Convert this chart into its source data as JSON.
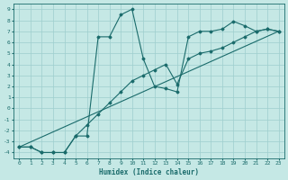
{
  "xlabel": "Humidex (Indice chaleur)",
  "bg_color": "#c5e8e5",
  "grid_color": "#9ecece",
  "line_color": "#1a6b6b",
  "xlim": [
    -0.5,
    23.5
  ],
  "ylim": [
    -4.5,
    9.5
  ],
  "xticks": [
    0,
    1,
    2,
    3,
    4,
    5,
    6,
    7,
    8,
    9,
    10,
    11,
    12,
    13,
    14,
    15,
    16,
    17,
    18,
    19,
    20,
    21,
    22,
    23
  ],
  "yticks": [
    -4,
    -3,
    -2,
    -1,
    0,
    1,
    2,
    3,
    4,
    5,
    6,
    7,
    8,
    9
  ],
  "series1_x": [
    0,
    1,
    2,
    3,
    4,
    5,
    6,
    7,
    8,
    9,
    10,
    11,
    12,
    13,
    14,
    15,
    16,
    17,
    18,
    19,
    20,
    21,
    22,
    23
  ],
  "series1_y": [
    -3.5,
    -3.5,
    -4.0,
    -4.0,
    -4.0,
    -2.5,
    -2.5,
    6.5,
    6.5,
    8.5,
    9.0,
    4.5,
    2.0,
    1.8,
    1.5,
    6.5,
    7.0,
    7.0,
    7.2,
    7.9,
    7.5,
    7.0,
    7.2,
    7.0
  ],
  "series2_x": [
    0,
    1,
    2,
    3,
    4,
    5,
    6,
    7,
    8,
    9,
    10,
    11,
    12,
    13,
    14,
    15,
    16,
    17,
    18,
    19,
    20,
    21,
    22,
    23
  ],
  "series2_y": [
    -3.5,
    -3.5,
    -4.0,
    -4.0,
    -4.0,
    -2.5,
    -1.5,
    -0.5,
    0.5,
    1.5,
    2.5,
    3.0,
    3.5,
    4.0,
    2.2,
    4.5,
    5.0,
    5.2,
    5.5,
    6.0,
    6.5,
    7.0,
    7.2,
    7.0
  ],
  "series3_x": [
    0,
    23
  ],
  "series3_y": [
    -3.5,
    7.0
  ],
  "marker_style": "D",
  "marker_size": 1.5,
  "line_width": 0.8,
  "tick_fontsize": 4.5,
  "xlabel_fontsize": 5.5
}
